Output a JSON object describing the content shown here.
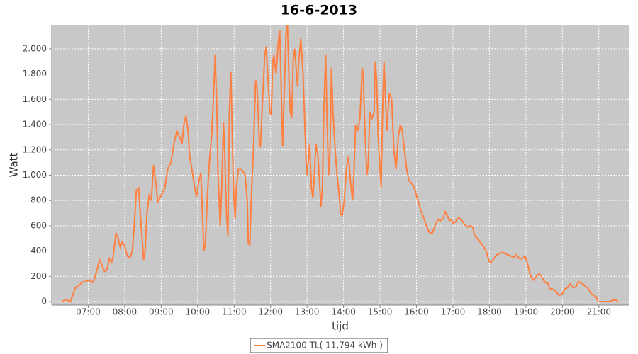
{
  "chart_data": {
    "type": "line",
    "title": "16-6-2013",
    "x_label": "tijd",
    "y_label": "Watt",
    "x": [
      6.28,
      6.38,
      6.51,
      6.65,
      6.75,
      6.84,
      6.94,
      7.04,
      7.1,
      7.16,
      7.23,
      7.31,
      7.39,
      7.45,
      7.51,
      7.58,
      7.64,
      7.68,
      7.76,
      7.82,
      7.88,
      7.93,
      7.99,
      8.07,
      8.15,
      8.21,
      8.26,
      8.32,
      8.38,
      8.44,
      8.52,
      8.56,
      8.61,
      8.67,
      8.73,
      8.79,
      8.85,
      8.91,
      8.96,
      9.02,
      9.1,
      9.18,
      9.27,
      9.35,
      9.43,
      9.51,
      9.57,
      9.62,
      9.68,
      9.74,
      9.78,
      9.84,
      9.92,
      9.97,
      10.03,
      10.09,
      10.13,
      10.17,
      10.21,
      10.27,
      10.32,
      10.38,
      10.44,
      10.48,
      10.52,
      10.56,
      10.62,
      10.66,
      10.71,
      10.75,
      10.79,
      10.83,
      10.87,
      10.91,
      10.95,
      10.99,
      11.03,
      11.06,
      11.12,
      11.18,
      11.24,
      11.3,
      11.36,
      11.39,
      11.43,
      11.47,
      11.53,
      11.59,
      11.63,
      11.69,
      11.72,
      11.78,
      11.84,
      11.88,
      11.92,
      11.98,
      12.02,
      12.06,
      12.09,
      12.15,
      12.21,
      12.25,
      12.29,
      12.33,
      12.37,
      12.42,
      12.46,
      12.5,
      12.54,
      12.58,
      12.62,
      12.66,
      12.7,
      12.74,
      12.77,
      12.83,
      12.89,
      12.95,
      12.99,
      13.03,
      13.07,
      13.12,
      13.16,
      13.2,
      13.24,
      13.3,
      13.34,
      13.38,
      13.42,
      13.46,
      13.51,
      13.55,
      13.59,
      13.63,
      13.67,
      13.71,
      13.77,
      13.82,
      13.88,
      13.92,
      13.96,
      14.02,
      14.08,
      14.14,
      14.19,
      14.25,
      14.29,
      14.33,
      14.39,
      14.45,
      14.51,
      14.54,
      14.58,
      14.64,
      14.68,
      14.72,
      14.78,
      14.84,
      14.87,
      14.91,
      14.95,
      14.99,
      15.03,
      15.07,
      15.11,
      15.15,
      15.19,
      15.22,
      15.26,
      15.32,
      15.38,
      15.44,
      15.5,
      15.56,
      15.61,
      15.67,
      15.73,
      15.79,
      15.85,
      15.91,
      15.96,
      16.04,
      16.12,
      16.2,
      16.27,
      16.35,
      16.43,
      16.51,
      16.59,
      16.66,
      16.74,
      16.78,
      16.84,
      16.9,
      16.96,
      17.01,
      17.07,
      17.13,
      17.19,
      17.25,
      17.32,
      17.4,
      17.48,
      17.54,
      17.6,
      17.67,
      17.75,
      17.83,
      17.91,
      17.99,
      18.04,
      18.12,
      18.2,
      18.28,
      18.36,
      18.43,
      18.51,
      18.59,
      18.67,
      18.74,
      18.82,
      18.9,
      18.98,
      19.06,
      19.13,
      19.21,
      19.29,
      19.37,
      19.43,
      19.48,
      19.54,
      19.6,
      19.66,
      19.72,
      19.79,
      19.85,
      19.91,
      19.99,
      20.07,
      20.14,
      20.22,
      20.3,
      20.38,
      20.44,
      20.49,
      20.55,
      20.63,
      20.69,
      20.75,
      20.81,
      20.86,
      20.92,
      20.98,
      21.1,
      21.29,
      21.45,
      21.53
    ],
    "series": [
      {
        "name": "SMA2100 TL( 11,794 kWh )",
        "color": "#ff8040",
        "values": [
          0,
          15,
          0,
          110,
          130,
          155,
          160,
          170,
          150,
          170,
          240,
          330,
          280,
          240,
          250,
          340,
          310,
          350,
          540,
          500,
          430,
          470,
          450,
          360,
          350,
          400,
          600,
          880,
          900,
          650,
          330,
          400,
          700,
          840,
          800,
          1080,
          950,
          780,
          820,
          850,
          900,
          1050,
          1100,
          1250,
          1350,
          1300,
          1250,
          1400,
          1470,
          1350,
          1150,
          1050,
          900,
          830,
          950,
          1020,
          700,
          400,
          450,
          850,
          1100,
          1300,
          1650,
          1950,
          1600,
          1000,
          600,
          900,
          1420,
          1100,
          700,
          520,
          1500,
          1820,
          1300,
          850,
          650,
          900,
          1050,
          1050,
          1030,
          1000,
          800,
          460,
          450,
          800,
          1200,
          1750,
          1700,
          1250,
          1220,
          1600,
          1950,
          2020,
          1800,
          1500,
          1480,
          1900,
          1950,
          1800,
          2050,
          2150,
          1700,
          1230,
          1600,
          2100,
          2200,
          1800,
          1500,
          1450,
          1900,
          2000,
          1850,
          1700,
          1900,
          2080,
          1800,
          1300,
          1000,
          1100,
          1250,
          900,
          820,
          1000,
          1250,
          1150,
          950,
          750,
          900,
          1500,
          1950,
          1400,
          1000,
          1200,
          1850,
          1500,
          1200,
          1000,
          850,
          700,
          680,
          800,
          1050,
          1150,
          950,
          800,
          1050,
          1400,
          1350,
          1450,
          1850,
          1800,
          1400,
          1000,
          1100,
          1500,
          1450,
          1500,
          1900,
          1750,
          1300,
          1100,
          900,
          1500,
          1900,
          1600,
          1350,
          1500,
          1650,
          1600,
          1200,
          1050,
          1300,
          1400,
          1350,
          1200,
          1050,
          960,
          940,
          920,
          880,
          800,
          720,
          660,
          600,
          550,
          540,
          600,
          650,
          640,
          660,
          710,
          690,
          640,
          650,
          620,
          630,
          660,
          660,
          640,
          610,
          590,
          600,
          590,
          520,
          500,
          470,
          440,
          400,
          320,
          310,
          340,
          370,
          380,
          390,
          380,
          370,
          360,
          350,
          370,
          340,
          340,
          360,
          280,
          200,
          170,
          200,
          220,
          200,
          170,
          150,
          145,
          100,
          100,
          90,
          70,
          50,
          60,
          100,
          110,
          140,
          110,
          120,
          160,
          150,
          140,
          120,
          110,
          80,
          60,
          50,
          40,
          0,
          0,
          0,
          15,
          0
        ]
      }
    ],
    "xlim": [
      6.0,
      21.84
    ],
    "xticks": [
      {
        "value": 7,
        "label": "07:00"
      },
      {
        "value": 8,
        "label": "08:00"
      },
      {
        "value": 9,
        "label": "09:00"
      },
      {
        "value": 10,
        "label": "10:00"
      },
      {
        "value": 11,
        "label": "11:00"
      },
      {
        "value": 12,
        "label": "12:00"
      },
      {
        "value": 13,
        "label": "13:00"
      },
      {
        "value": 14,
        "label": "14:00"
      },
      {
        "value": 15,
        "label": "15:00"
      },
      {
        "value": 16,
        "label": "16:00"
      },
      {
        "value": 17,
        "label": "17:00"
      },
      {
        "value": 18,
        "label": "18:00"
      },
      {
        "value": 19,
        "label": "19:00"
      },
      {
        "value": 20,
        "label": "20:00"
      },
      {
        "value": 21,
        "label": "21:00"
      }
    ],
    "ylim": [
      -28,
      2190
    ],
    "yticks": [
      0,
      200,
      400,
      600,
      800,
      {
        "value": 1000,
        "label": "1.000"
      },
      {
        "value": 1200,
        "label": "1.200"
      },
      {
        "value": 1400,
        "label": "1.400"
      },
      {
        "value": 1600,
        "label": "1.600"
      },
      {
        "value": 1800,
        "label": "1.800"
      },
      {
        "value": 2000,
        "label": "2.000"
      }
    ],
    "grid": true,
    "legend": "bottom"
  }
}
